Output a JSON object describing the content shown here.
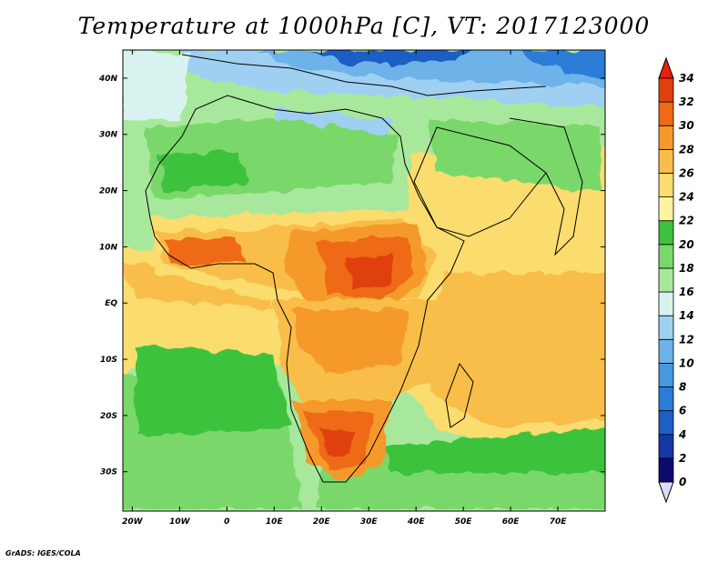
{
  "title": "Temperature at 1000hPa [C], VT: 2017123000",
  "footer": "GrADS: IGES/COLA",
  "lat_labels": [
    "40N",
    "30N",
    "20N",
    "10N",
    "EQ",
    "10S",
    "20S",
    "30S"
  ],
  "lat_values": [
    40,
    30,
    20,
    10,
    0,
    -10,
    -20,
    -30
  ],
  "lon_labels": [
    "20W",
    "10W",
    "0",
    "10E",
    "20E",
    "30E",
    "40E",
    "50E",
    "60E",
    "70E"
  ],
  "lon_values": [
    -20,
    -10,
    0,
    10,
    20,
    30,
    40,
    50,
    60,
    70
  ],
  "extent": {
    "lon_min": -22,
    "lon_max": 80,
    "lat_min": -37,
    "lat_max": 45
  },
  "colorbar": {
    "units": "C",
    "levels": [
      "34",
      "32",
      "30",
      "28",
      "26",
      "24",
      "22",
      "20",
      "18",
      "16",
      "14",
      "12",
      "10",
      "8",
      "6",
      "4",
      "2",
      "0"
    ],
    "colors": [
      "#0b0b6e",
      "#1537a6",
      "#1f5ec4",
      "#2b7cd6",
      "#4698e0",
      "#6db3ea",
      "#9fd0f2",
      "#d8f3ef",
      "#a8e89c",
      "#7ad86a",
      "#3cc23c",
      "#fdf3a2",
      "#fbdc6e",
      "#f9bd4a",
      "#f59a2a",
      "#ee6a17",
      "#e0400b"
    ],
    "max_color": "#e8200c",
    "min_color": "#dcdcff"
  }
}
